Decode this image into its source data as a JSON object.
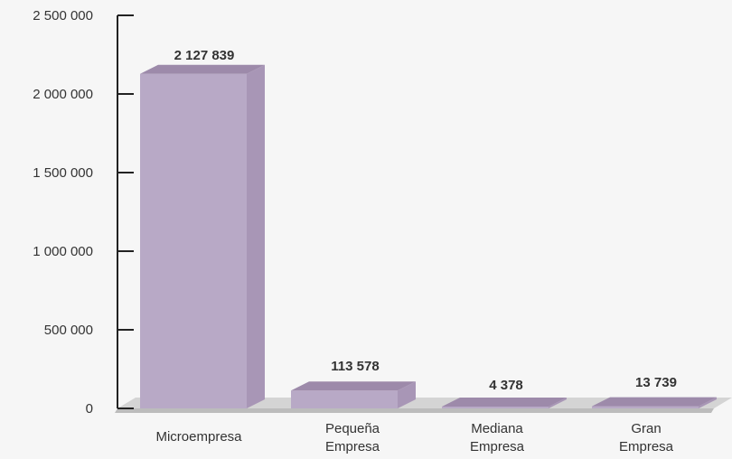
{
  "chart_data": {
    "type": "bar",
    "categories": [
      [
        "Microempresa"
      ],
      [
        "Pequeña",
        "Empresa"
      ],
      [
        "Mediana",
        "Empresa"
      ],
      [
        "Gran",
        "Empresa"
      ]
    ],
    "values": [
      2127839,
      113578,
      4378,
      13739
    ],
    "value_labels": [
      "2 127 839",
      "113 578",
      "4 378",
      "13 739"
    ],
    "y_ticks": [
      {
        "value": 0,
        "label": "0"
      },
      {
        "value": 500000,
        "label": "500 000"
      },
      {
        "value": 1000000,
        "label": "1 000 000"
      },
      {
        "value": 1500000,
        "label": "1 500 000"
      },
      {
        "value": 2000000,
        "label": "2 000 000"
      },
      {
        "value": 2500000,
        "label": "2 500 000"
      }
    ],
    "ylim": [
      0,
      2500000
    ],
    "grid": false,
    "legend": "none",
    "title": "",
    "xlabel": "",
    "ylabel": "",
    "colors": {
      "bar_front": "#b8a9c6",
      "bar_top": "#9d8aaa",
      "bar_side": "#a896b6",
      "floor": "#d4d4d4",
      "floor_edge": "#bcbcbc",
      "axis": "#222222"
    }
  }
}
